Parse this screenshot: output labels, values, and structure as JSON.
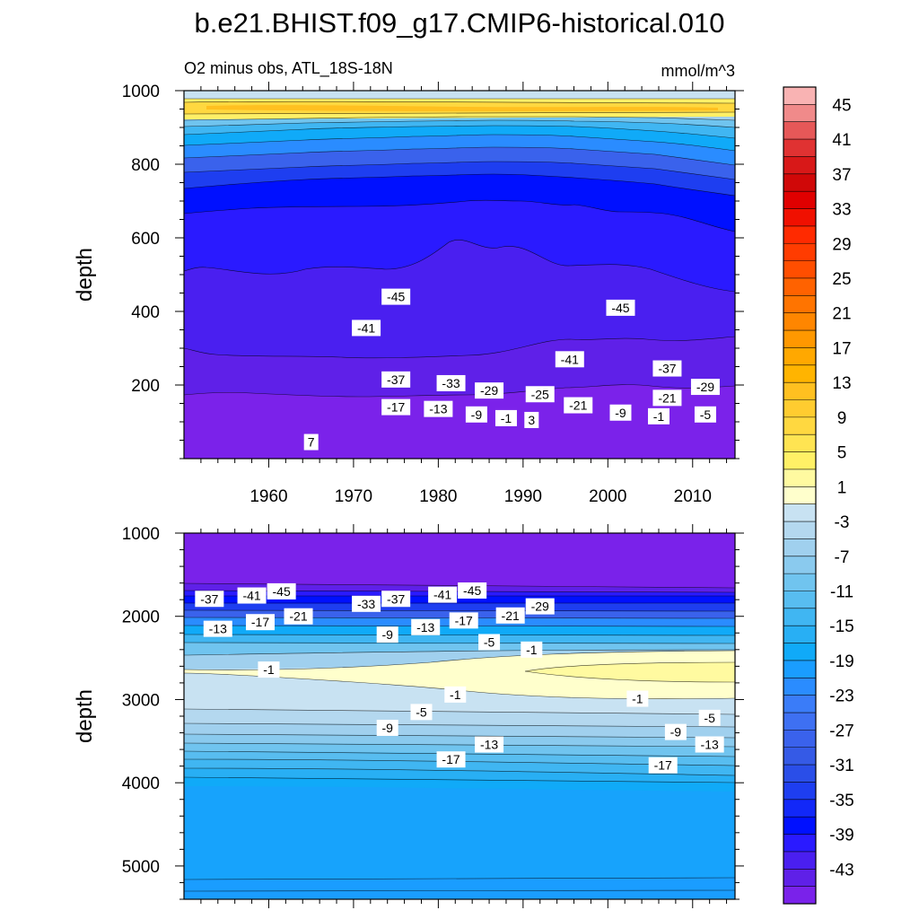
{
  "title": "b.e21.BHIST.f09_g17.CMIP6-historical.010",
  "chart_data": [
    {
      "type": "heatmap",
      "subtitle_left": "O2 minus obs, ATL_18S-18N",
      "subtitle_right": "mmol/m^3",
      "ylabel": "depth",
      "xlabel": "",
      "xlim": [
        1950,
        2015
      ],
      "ylim": [
        1000,
        0
      ],
      "y_reversed": true,
      "x_ticks": [
        "1960",
        "1970",
        "1980",
        "1990",
        "2000",
        "2010"
      ],
      "y_ticks": [
        "200",
        "400",
        "600",
        "800",
        "1000"
      ],
      "contour_labels": [
        {
          "text": "7",
          "x": 1965,
          "y": 45
        },
        {
          "text": "-17",
          "x": 1975,
          "y": 140
        },
        {
          "text": "-13",
          "x": 1980,
          "y": 135
        },
        {
          "text": "-9",
          "x": 1984.5,
          "y": 120
        },
        {
          "text": "-1",
          "x": 1988,
          "y": 110
        },
        {
          "text": "3",
          "x": 1991,
          "y": 105
        },
        {
          "text": "-21",
          "x": 1996.5,
          "y": 145
        },
        {
          "text": "-9",
          "x": 2001.5,
          "y": 125
        },
        {
          "text": "-1",
          "x": 2006,
          "y": 115
        },
        {
          "text": "-5",
          "x": 2011.5,
          "y": 120
        },
        {
          "text": "-29",
          "x": 1986,
          "y": 185
        },
        {
          "text": "-25",
          "x": 1992,
          "y": 175
        },
        {
          "text": "-21",
          "x": 2007,
          "y": 165
        },
        {
          "text": "-29",
          "x": 2011.5,
          "y": 195
        },
        {
          "text": "-33",
          "x": 1981.5,
          "y": 205
        },
        {
          "text": "-37",
          "x": 1975,
          "y": 215
        },
        {
          "text": "-37",
          "x": 2007,
          "y": 245
        },
        {
          "text": "-41",
          "x": 1995.5,
          "y": 270
        },
        {
          "text": "-41",
          "x": 1971.5,
          "y": 355
        },
        {
          "text": "-45",
          "x": 1975,
          "y": 440
        },
        {
          "text": "-45",
          "x": 2001.5,
          "y": 410
        }
      ]
    },
    {
      "type": "heatmap",
      "subtitle_left": "",
      "subtitle_right": "",
      "ylabel": "depth",
      "xlabel": "",
      "xlim": [
        1950,
        2015
      ],
      "ylim": [
        1000,
        5400
      ],
      "y_reversed": true,
      "x_ticks": [],
      "y_ticks": [
        "1000",
        "2000",
        "3000",
        "4000",
        "5000"
      ],
      "contour_labels": [
        {
          "text": "-37",
          "x": 1953,
          "y": 1790
        },
        {
          "text": "-41",
          "x": 1958,
          "y": 1750
        },
        {
          "text": "-45",
          "x": 1961.5,
          "y": 1700
        },
        {
          "text": "-33",
          "x": 1971.5,
          "y": 1850
        },
        {
          "text": "-37",
          "x": 1975,
          "y": 1790
        },
        {
          "text": "-41",
          "x": 1980.5,
          "y": 1740
        },
        {
          "text": "-45",
          "x": 1984,
          "y": 1690
        },
        {
          "text": "-29",
          "x": 1992,
          "y": 1880
        },
        {
          "text": "-13",
          "x": 1954,
          "y": 2150
        },
        {
          "text": "-17",
          "x": 1959,
          "y": 2070
        },
        {
          "text": "-21",
          "x": 1963.5,
          "y": 2000
        },
        {
          "text": "-21",
          "x": 1988.5,
          "y": 1990
        },
        {
          "text": "-17",
          "x": 1983,
          "y": 2050
        },
        {
          "text": "-13",
          "x": 1978.5,
          "y": 2130
        },
        {
          "text": "-9",
          "x": 1974,
          "y": 2220
        },
        {
          "text": "-5",
          "x": 1986,
          "y": 2310
        },
        {
          "text": "-1",
          "x": 1991,
          "y": 2400
        },
        {
          "text": "-1",
          "x": 1960,
          "y": 2640
        },
        {
          "text": "-1",
          "x": 1982,
          "y": 2940
        },
        {
          "text": "-1",
          "x": 2003.5,
          "y": 2990
        },
        {
          "text": "-5",
          "x": 1978,
          "y": 3150
        },
        {
          "text": "-9",
          "x": 1974,
          "y": 3340
        },
        {
          "text": "-5",
          "x": 2012,
          "y": 3220
        },
        {
          "text": "-9",
          "x": 2008,
          "y": 3390
        },
        {
          "text": "-13",
          "x": 1986,
          "y": 3540
        },
        {
          "text": "-13",
          "x": 2012,
          "y": 3540
        },
        {
          "text": "-17",
          "x": 1981.5,
          "y": 3720
        },
        {
          "text": "-17",
          "x": 2006.5,
          "y": 3790
        }
      ]
    }
  ],
  "colorbar": {
    "labels": [
      "45",
      "41",
      "37",
      "33",
      "29",
      "25",
      "21",
      "17",
      "13",
      "9",
      "5",
      "1",
      "-3",
      "-7",
      "-11",
      "-15",
      "-19",
      "-23",
      "-27",
      "-31",
      "-35",
      "-39",
      "-43"
    ],
    "levels_top_to_bottom": [
      47,
      45,
      43,
      41,
      39,
      37,
      35,
      33,
      31,
      29,
      27,
      25,
      23,
      21,
      19,
      17,
      15,
      13,
      11,
      9,
      7,
      5,
      3,
      1,
      -1,
      -3,
      -5,
      -7,
      -9,
      -11,
      -13,
      -15,
      -17,
      -19,
      -21,
      -23,
      -25,
      -27,
      -29,
      -31,
      -33,
      -35,
      -37,
      -39,
      -41,
      -43,
      -45,
      -47
    ],
    "colors_top_to_bottom": [
      "#f9b3b3",
      "#f08a8a",
      "#e65858",
      "#e03232",
      "#d81818",
      "#d00808",
      "#e00000",
      "#f01000",
      "#ff2a00",
      "#ff3c00",
      "#ff4e00",
      "#ff6200",
      "#ff7400",
      "#ff8600",
      "#ff9800",
      "#ffa800",
      "#ffb400",
      "#ffc020",
      "#ffcc30",
      "#ffd840",
      "#ffe452",
      "#fff066",
      "#fffaa0",
      "#ffffcc",
      "#c8e2f2",
      "#b4d8ef",
      "#a0d0ee",
      "#8acaee",
      "#70c4ef",
      "#58bdf0",
      "#40b6f2",
      "#28aff4",
      "#10aaf8",
      "#1a9dff",
      "#2a8cff",
      "#3a7cf8",
      "#3e70f2",
      "#3a62ec",
      "#355ae6",
      "#2a4ee8",
      "#1e3ef0",
      "#1228f8",
      "#0010ff",
      "#2a1aff",
      "#4a1ff0",
      "#5f20e8",
      "#7a22ea"
    ]
  }
}
